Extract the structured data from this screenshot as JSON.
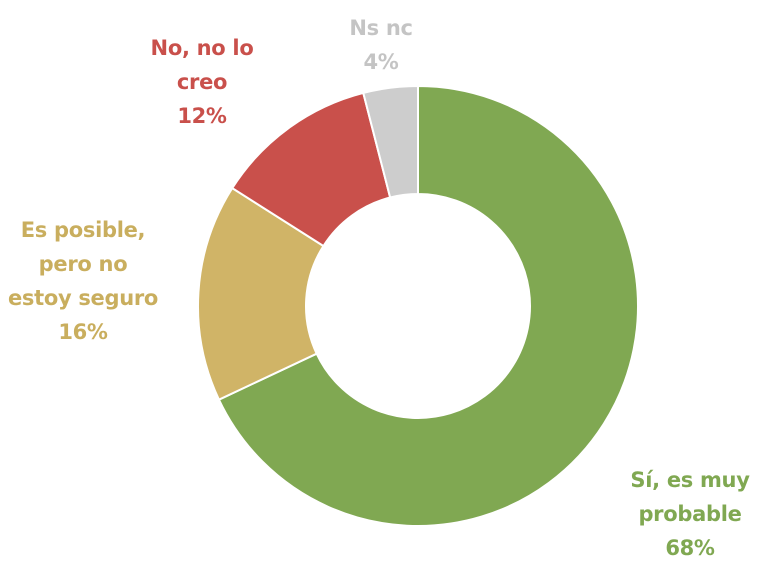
{
  "chart_data": {
    "type": "pie",
    "variant": "donut",
    "title": "",
    "start_angle_deg": 0,
    "direction": "clockwise",
    "slices": [
      {
        "label": "Sí, es muy probable",
        "value": 68,
        "display": "68%",
        "color": "#80A852"
      },
      {
        "label": "Es posible, pero no estoy seguro",
        "value": 16,
        "display": "16%",
        "color": "#D0B467"
      },
      {
        "label": "No, no lo creo",
        "value": 12,
        "display": "12%",
        "color": "#C9504B"
      },
      {
        "label": "Ns nc",
        "value": 4,
        "display": "4%",
        "color": "#CDCDCD"
      }
    ],
    "legend": "none (data labels outside slices)"
  },
  "labels": {
    "green": {
      "lines": [
        "Sí, es muy",
        "probable",
        "68%"
      ],
      "color": "#80A852"
    },
    "tan": {
      "lines": [
        "Es posible,",
        "pero no",
        "estoy seguro",
        "16%"
      ],
      "color": "#C9AE5E"
    },
    "red": {
      "lines": [
        "No, no lo",
        "creo",
        "12%"
      ],
      "color": "#C9504B"
    },
    "gray": {
      "lines": [
        "Ns nc",
        "4%"
      ],
      "color": "#C4C4C4"
    }
  }
}
